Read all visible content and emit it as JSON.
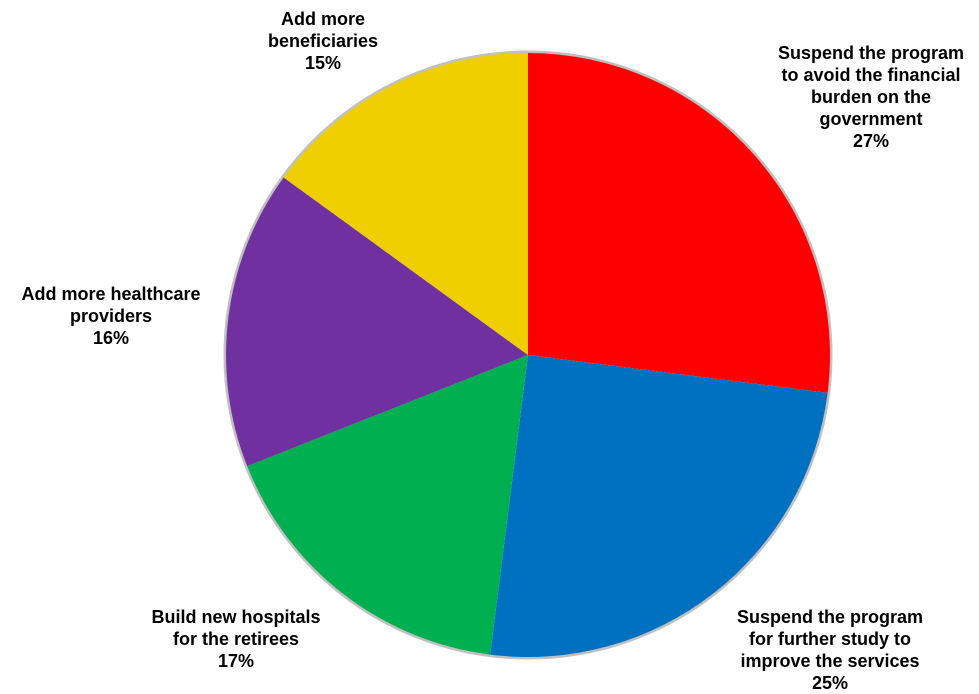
{
  "chart_data": {
    "type": "pie",
    "start_angle_deg": 0,
    "direction": "clockwise",
    "slices": [
      {
        "label_lines": [
          "Suspend the program",
          "to avoid the financial",
          "burden on the",
          "government"
        ],
        "value": 27,
        "value_label": "27%",
        "color": "#FF0000"
      },
      {
        "label_lines": [
          "Suspend the program",
          "for further study to",
          "improve the services"
        ],
        "value": 25,
        "value_label": "25%",
        "color": "#0070C0"
      },
      {
        "label_lines": [
          "Build new hospitals",
          "for the retirees"
        ],
        "value": 17,
        "value_label": "17%",
        "color": "#00B050"
      },
      {
        "label_lines": [
          "Add more healthcare",
          "providers"
        ],
        "value": 16,
        "value_label": "16%",
        "color": "#7030A0"
      },
      {
        "label_lines": [
          "Add more",
          "beneficiaries"
        ],
        "value": 15,
        "value_label": "15%",
        "color": "#F0CF00"
      }
    ],
    "border_color": "#C0C0C0"
  }
}
